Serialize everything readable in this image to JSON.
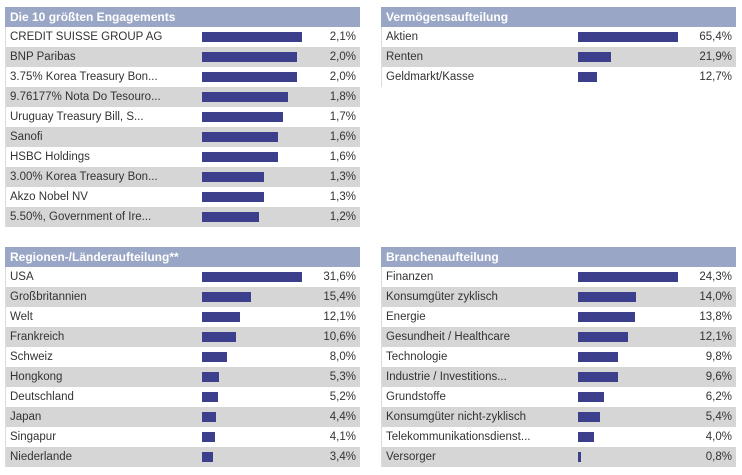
{
  "colors": {
    "header_bg": "#9aa6c6",
    "bar": "#3c3f8c",
    "row_alt": "#d6d6d6"
  },
  "top10": {
    "title": "Die 10 größten Engagements",
    "max_value": 2.1,
    "rows": [
      {
        "label": "CREDIT SUISSE GROUP AG",
        "value": 2.1,
        "pct": "2,1%"
      },
      {
        "label": "BNP Paribas",
        "value": 2.0,
        "pct": "2,0%"
      },
      {
        "label": "3.75% Korea Treasury Bon...",
        "value": 2.0,
        "pct": "2,0%"
      },
      {
        "label": "9.76177% Nota Do Tesouro...",
        "value": 1.8,
        "pct": "1,8%"
      },
      {
        "label": "Uruguay Treasury Bill, S...",
        "value": 1.7,
        "pct": "1,7%"
      },
      {
        "label": "Sanofi",
        "value": 1.6,
        "pct": "1,6%"
      },
      {
        "label": "HSBC Holdings",
        "value": 1.6,
        "pct": "1,6%"
      },
      {
        "label": "3.00% Korea Treasury Bon...",
        "value": 1.3,
        "pct": "1,3%"
      },
      {
        "label": "Akzo Nobel NV",
        "value": 1.3,
        "pct": "1,3%"
      },
      {
        "label": "5.50%, Government of Ire...",
        "value": 1.2,
        "pct": "1,2%"
      }
    ]
  },
  "alloc": {
    "title": "Vermögensaufteilung",
    "max_value": 65.4,
    "rows": [
      {
        "label": "Aktien",
        "value": 65.4,
        "pct": "65,4%"
      },
      {
        "label": "Renten",
        "value": 21.9,
        "pct": "21,9%"
      },
      {
        "label": "Geldmarkt/Kasse",
        "value": 12.7,
        "pct": "12,7%"
      }
    ]
  },
  "region": {
    "title": "Regionen-/Länderaufteilung**",
    "max_value": 31.6,
    "rows": [
      {
        "label": "USA",
        "value": 31.6,
        "pct": "31,6%"
      },
      {
        "label": "Großbritannien",
        "value": 15.4,
        "pct": "15,4%"
      },
      {
        "label": "Welt",
        "value": 12.1,
        "pct": "12,1%"
      },
      {
        "label": "Frankreich",
        "value": 10.6,
        "pct": "10,6%"
      },
      {
        "label": "Schweiz",
        "value": 8.0,
        "pct": "8,0%"
      },
      {
        "label": "Hongkong",
        "value": 5.3,
        "pct": "5,3%"
      },
      {
        "label": "Deutschland",
        "value": 5.2,
        "pct": "5,2%"
      },
      {
        "label": "Japan",
        "value": 4.4,
        "pct": "4,4%"
      },
      {
        "label": "Singapur",
        "value": 4.1,
        "pct": "4,1%"
      },
      {
        "label": "Niederlande",
        "value": 3.4,
        "pct": "3,4%"
      }
    ]
  },
  "branch": {
    "title": "Branchenaufteilung",
    "max_value": 24.3,
    "rows": [
      {
        "label": "Finanzen",
        "value": 24.3,
        "pct": "24,3%"
      },
      {
        "label": "Konsumgüter zyklisch",
        "value": 14.0,
        "pct": "14,0%"
      },
      {
        "label": "Energie",
        "value": 13.8,
        "pct": "13,8%"
      },
      {
        "label": "Gesundheit / Healthcare",
        "value": 12.1,
        "pct": "12,1%"
      },
      {
        "label": "Technologie",
        "value": 9.8,
        "pct": "9,8%"
      },
      {
        "label": "Industrie / Investitions...",
        "value": 9.6,
        "pct": "9,6%"
      },
      {
        "label": "Grundstoffe",
        "value": 6.2,
        "pct": "6,2%"
      },
      {
        "label": "Konsumgüter nicht-zyklisch",
        "value": 5.4,
        "pct": "5,4%"
      },
      {
        "label": "Telekommunikationsdienst...",
        "value": 4.0,
        "pct": "4,0%"
      },
      {
        "label": "Versorger",
        "value": 0.8,
        "pct": "0,8%"
      }
    ]
  }
}
